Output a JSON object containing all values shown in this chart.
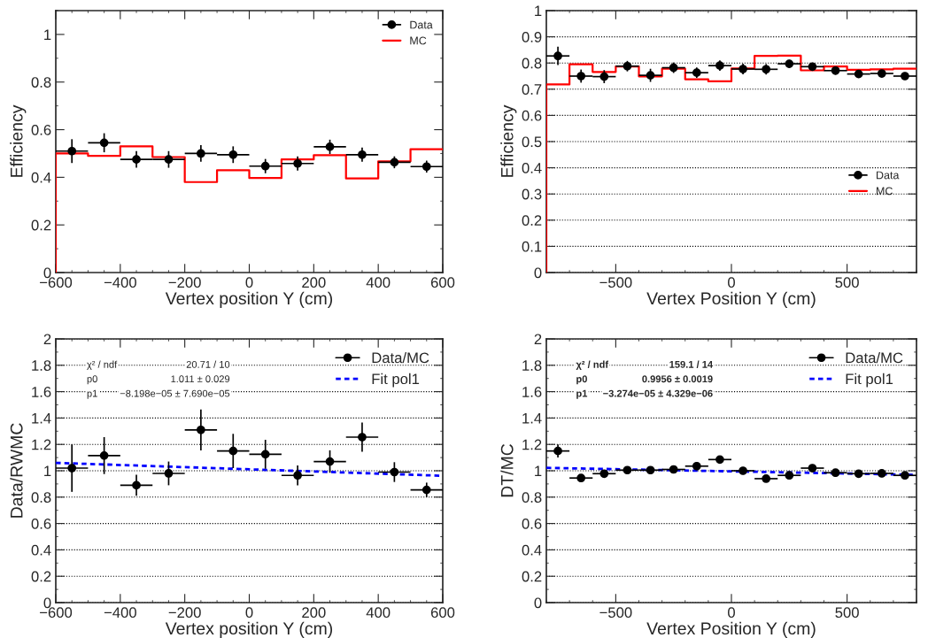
{
  "chart_data": [
    {
      "type": "scatter",
      "xlabel": "Vertex position Y (cm)",
      "ylabel": "Efficiency",
      "xlim": [
        -600,
        600
      ],
      "xticks": [
        -600,
        -400,
        -200,
        0,
        200,
        400,
        600
      ],
      "ylim": [
        0,
        1.1
      ],
      "yticks": [
        0,
        0.2,
        0.4,
        0.6,
        0.8,
        1
      ],
      "grid": false,
      "legend": "top right",
      "series": [
        {
          "name": "Data",
          "marker": "circle",
          "color": "#000000",
          "x": [
            -550,
            -450,
            -350,
            -250,
            -150,
            -50,
            50,
            150,
            250,
            350,
            450,
            550
          ],
          "values": [
            0.51,
            0.545,
            0.475,
            0.475,
            0.5,
            0.495,
            0.447,
            0.458,
            0.528,
            0.495,
            0.463,
            0.445
          ],
          "errors": [
            0.05,
            0.04,
            0.035,
            0.035,
            0.035,
            0.035,
            0.03,
            0.03,
            0.03,
            0.03,
            0.025,
            0.025
          ],
          "xerrors": [
            50,
            50,
            50,
            50,
            50,
            50,
            50,
            50,
            50,
            50,
            50,
            50
          ]
        },
        {
          "name": "MC",
          "type": "step",
          "color": "#ff0000",
          "x": [
            -600,
            -600,
            -500,
            -400,
            -300,
            -200,
            -100,
            0,
            100,
            200,
            300,
            400,
            500,
            600
          ],
          "values": [
            0,
            0.5,
            0.49,
            0.53,
            0.485,
            0.38,
            0.43,
            0.397,
            0.475,
            0.493,
            0.395,
            0.467,
            0.518,
            0.518
          ]
        }
      ]
    },
    {
      "type": "scatter",
      "xlabel": "Vertex Position Y (cm)",
      "ylabel": "Efficiency",
      "xlim": [
        -800,
        800
      ],
      "xticks": [
        -500,
        0,
        500
      ],
      "ylim": [
        0,
        1
      ],
      "yticks": [
        0,
        0.1,
        0.2,
        0.3,
        0.4,
        0.5,
        0.6,
        0.7,
        0.8,
        0.9,
        1
      ],
      "grid": "y",
      "legend": "lower right",
      "series": [
        {
          "name": "Data",
          "marker": "circle",
          "color": "#000000",
          "x": [
            -750,
            -650,
            -550,
            -450,
            -350,
            -250,
            -150,
            -50,
            50,
            150,
            250,
            350,
            450,
            550,
            650,
            750
          ],
          "values": [
            0.827,
            0.75,
            0.748,
            0.788,
            0.753,
            0.782,
            0.763,
            0.79,
            0.777,
            0.776,
            0.797,
            0.786,
            0.771,
            0.758,
            0.76,
            0.75
          ],
          "errors": [
            0.035,
            0.025,
            0.025,
            0.02,
            0.025,
            0.02,
            0.02,
            0.02,
            0.02,
            0.02,
            0.015,
            0.015,
            0.015,
            0.015,
            0.013,
            0.013
          ],
          "xerrors": [
            50,
            50,
            50,
            50,
            50,
            50,
            50,
            50,
            50,
            50,
            50,
            50,
            50,
            50,
            50,
            50
          ]
        },
        {
          "name": "MC",
          "type": "step",
          "color": "#ff0000",
          "x": [
            -800,
            -800,
            -700,
            -600,
            -500,
            -400,
            -300,
            -200,
            -100,
            0,
            100,
            200,
            300,
            400,
            500,
            600,
            700,
            800
          ],
          "values": [
            0,
            0.718,
            0.795,
            0.766,
            0.787,
            0.749,
            0.778,
            0.738,
            0.73,
            0.779,
            0.827,
            0.828,
            0.772,
            0.787,
            0.774,
            0.776,
            0.778,
            0.778
          ]
        }
      ]
    },
    {
      "type": "scatter",
      "xlabel": "Vertex position Y (cm)",
      "ylabel": "Data/RWMC",
      "xlim": [
        -600,
        600
      ],
      "xticks": [
        -600,
        -400,
        -200,
        0,
        200,
        400,
        600
      ],
      "ylim": [
        0,
        2
      ],
      "yticks": [
        0,
        0.2,
        0.4,
        0.6,
        0.8,
        1,
        1.2,
        1.4,
        1.6,
        1.8,
        2
      ],
      "grid": "y",
      "legend": "top right",
      "annotations": [
        "χ² / ndf",
        "20.71 / 10",
        "p0",
        "1.011 ± 0.029",
        "p1",
        "−8.198e−05 ± 7.690e−05"
      ],
      "series": [
        {
          "name": "Data/MC",
          "marker": "circle",
          "color": "#000000",
          "x": [
            -550,
            -450,
            -350,
            -250,
            -150,
            -50,
            50,
            150,
            250,
            350,
            450,
            550
          ],
          "values": [
            1.02,
            1.115,
            0.89,
            0.98,
            1.31,
            1.15,
            1.125,
            0.965,
            1.07,
            1.255,
            0.99,
            0.855
          ],
          "errors": [
            0.18,
            0.14,
            0.08,
            0.09,
            0.155,
            0.13,
            0.11,
            0.075,
            0.085,
            0.11,
            0.075,
            0.055
          ],
          "xerrors": [
            50,
            50,
            50,
            50,
            50,
            50,
            50,
            50,
            50,
            50,
            50,
            50
          ]
        },
        {
          "name": "Fit pol1",
          "type": "line",
          "color": "#0000ff",
          "line_style": "dashed",
          "x": [
            -600,
            600
          ],
          "values": [
            1.06,
            0.962
          ]
        }
      ]
    },
    {
      "type": "scatter",
      "xlabel": "Vertex Position Y (cm)",
      "ylabel": "DT/MC",
      "xlim": [
        -800,
        800
      ],
      "xticks": [
        -500,
        0,
        500
      ],
      "ylim": [
        0,
        2
      ],
      "yticks": [
        0,
        0.2,
        0.4,
        0.6,
        0.8,
        1,
        1.2,
        1.4,
        1.6,
        1.8,
        2
      ],
      "grid": "y",
      "legend": "top right",
      "annotations": [
        "χ² / ndf",
        "159.1 / 14",
        "p0",
        "0.9956 ± 0.0019",
        "p1",
        "−3.274e−05 ± 4.329e−06"
      ],
      "series": [
        {
          "name": "Data/MC",
          "marker": "circle",
          "color": "#000000",
          "x": [
            -750,
            -650,
            -550,
            -450,
            -350,
            -250,
            -150,
            -50,
            50,
            150,
            250,
            350,
            450,
            550,
            650,
            750
          ],
          "values": [
            1.15,
            0.945,
            0.978,
            1.005,
            1.005,
            1.01,
            1.035,
            1.085,
            1.0,
            0.94,
            0.965,
            1.02,
            0.985,
            0.978,
            0.98,
            0.965
          ],
          "errors": [
            0.05,
            0.01,
            0.01,
            0.01,
            0.01,
            0.01,
            0.01,
            0.01,
            0.01,
            0.01,
            0.01,
            0.01,
            0.01,
            0.01,
            0.01,
            0.01
          ],
          "xerrors": [
            50,
            50,
            50,
            50,
            50,
            50,
            50,
            50,
            50,
            50,
            50,
            50,
            50,
            50,
            50,
            50
          ]
        },
        {
          "name": "Fit pol1",
          "type": "line",
          "color": "#0000ff",
          "line_style": "dashed",
          "x": [
            -800,
            800
          ],
          "values": [
            1.022,
            0.969
          ]
        }
      ]
    }
  ]
}
